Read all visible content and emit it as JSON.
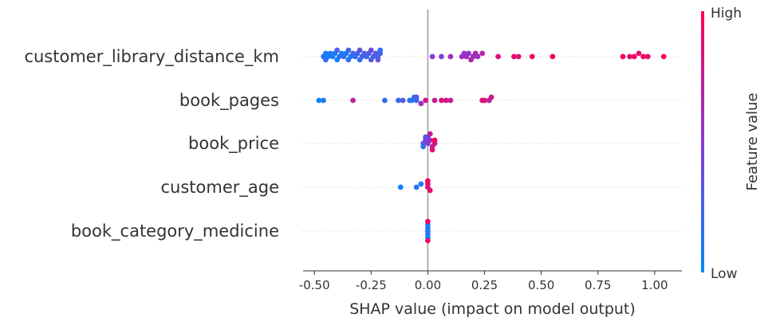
{
  "chart_data": {
    "type": "scatter",
    "subtype": "shap-beeswarm",
    "title": "",
    "xlabel": "SHAP value (impact on model output)",
    "xlim": [
      -0.55,
      1.12
    ],
    "xticks": [
      "-0.50",
      "-0.25",
      "0.00",
      "0.25",
      "0.50",
      "0.75",
      "1.00"
    ],
    "xtick_values": [
      -0.5,
      -0.25,
      0,
      0.25,
      0.5,
      0.75,
      1.0
    ],
    "features": [
      "customer_library_distance_km",
      "book_pages",
      "book_price",
      "customer_age",
      "book_category_medicine"
    ],
    "colorbar": {
      "title": "Feature value",
      "high": "High",
      "low": "Low",
      "low_color": "#008bfb",
      "high_color": "#ff0052"
    },
    "series": [
      {
        "feature": "customer_library_distance_km",
        "points": [
          [
            -0.46,
            0.15
          ],
          [
            -0.45,
            0.1
          ],
          [
            -0.44,
            0.05
          ],
          [
            -0.43,
            0.12
          ],
          [
            -0.42,
            0.08
          ],
          [
            -0.41,
            0.1
          ],
          [
            -0.4,
            0.05
          ],
          [
            -0.39,
            0.15
          ],
          [
            -0.38,
            0.1
          ],
          [
            -0.37,
            0.2
          ],
          [
            -0.36,
            0.12
          ],
          [
            -0.35,
            0.15
          ],
          [
            -0.34,
            0.1
          ],
          [
            -0.33,
            0.25
          ],
          [
            -0.32,
            0.2
          ],
          [
            -0.31,
            0.22
          ],
          [
            -0.3,
            0.18
          ],
          [
            -0.29,
            0.25
          ],
          [
            -0.28,
            0.3
          ],
          [
            -0.27,
            0.22
          ],
          [
            -0.26,
            0.28
          ],
          [
            -0.25,
            0.3
          ],
          [
            -0.24,
            0.25
          ],
          [
            -0.23,
            0.3
          ],
          [
            -0.22,
            0.2
          ],
          [
            -0.21,
            0.28
          ],
          [
            -0.45,
            0.2
          ],
          [
            -0.4,
            0.25
          ],
          [
            -0.35,
            0.22
          ],
          [
            -0.3,
            0.35
          ],
          [
            -0.25,
            0.4
          ],
          [
            -0.22,
            0.35
          ],
          [
            -0.21,
            0.15
          ],
          [
            0.02,
            0.5
          ],
          [
            0.06,
            0.45
          ],
          [
            0.1,
            0.6
          ],
          [
            0.15,
            0.55
          ],
          [
            0.17,
            0.6
          ],
          [
            0.18,
            0.55
          ],
          [
            0.19,
            0.65
          ],
          [
            0.2,
            0.6
          ],
          [
            0.21,
            0.65
          ],
          [
            0.22,
            0.6
          ],
          [
            0.24,
            0.7
          ],
          [
            0.16,
            0.55
          ],
          [
            0.31,
            0.85
          ],
          [
            0.38,
            0.9
          ],
          [
            0.4,
            0.85
          ],
          [
            0.46,
            0.95
          ],
          [
            0.55,
            0.95
          ],
          [
            0.86,
            0.95
          ],
          [
            0.89,
            0.9
          ],
          [
            0.91,
            0.95
          ],
          [
            0.93,
            0.88
          ],
          [
            0.95,
            0.95
          ],
          [
            0.97,
            0.9
          ],
          [
            1.04,
            1.0
          ]
        ]
      },
      {
        "feature": "book_pages",
        "points": [
          [
            -0.48,
            0.05
          ],
          [
            -0.46,
            0.1
          ],
          [
            -0.33,
            0.7
          ],
          [
            -0.19,
            0.2
          ],
          [
            -0.13,
            0.2
          ],
          [
            -0.11,
            0.3
          ],
          [
            -0.08,
            0.25
          ],
          [
            -0.07,
            0.1
          ],
          [
            -0.06,
            0.15
          ],
          [
            -0.05,
            0.2
          ],
          [
            -0.05,
            0.3
          ],
          [
            -0.03,
            0.6
          ],
          [
            -0.01,
            0.8
          ],
          [
            0.03,
            0.75
          ],
          [
            0.06,
            0.85
          ],
          [
            0.08,
            0.8
          ],
          [
            0.1,
            0.75
          ],
          [
            0.24,
            0.9
          ],
          [
            0.27,
            0.7
          ],
          [
            0.28,
            0.8
          ],
          [
            0.25,
            0.85
          ]
        ]
      },
      {
        "feature": "book_price",
        "points": [
          [
            -0.02,
            0.3
          ],
          [
            -0.01,
            0.4
          ],
          [
            0.0,
            0.5
          ],
          [
            0.01,
            0.6
          ],
          [
            0.02,
            0.7
          ],
          [
            0.03,
            0.8
          ],
          [
            -0.02,
            0.2
          ],
          [
            0.0,
            0.45
          ],
          [
            0.02,
            0.9
          ],
          [
            0.03,
            0.95
          ],
          [
            -0.01,
            0.35
          ],
          [
            0.01,
            0.75
          ]
        ]
      },
      {
        "feature": "customer_age",
        "points": [
          [
            -0.12,
            0.05
          ],
          [
            -0.05,
            0.15
          ],
          [
            -0.03,
            0.1
          ],
          [
            0.0,
            0.8
          ],
          [
            0.0,
            0.85
          ],
          [
            0.01,
            0.9
          ],
          [
            0.0,
            0.95
          ]
        ]
      },
      {
        "feature": "book_category_medicine",
        "points": [
          [
            0.0,
            0.05
          ],
          [
            0.0,
            0.1
          ],
          [
            0.0,
            0.15
          ],
          [
            0.0,
            0.1
          ],
          [
            0.0,
            0.05
          ],
          [
            0.0,
            0.95
          ],
          [
            0.0,
            0.9
          ]
        ]
      }
    ]
  }
}
